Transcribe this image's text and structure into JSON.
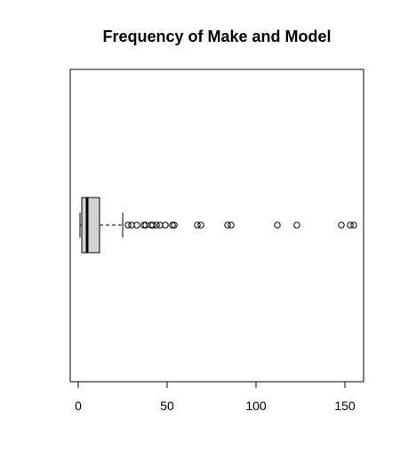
{
  "chart_data": {
    "type": "boxplot",
    "orientation": "horizontal",
    "title": "Frequency of Make and Model",
    "xlabel": "",
    "ylabel": "",
    "xlim": [
      -4.5,
      160.5
    ],
    "x_ticks": [
      0,
      50,
      100,
      150
    ],
    "x_tick_labels": [
      "0",
      "50",
      "100",
      "150"
    ],
    "box": {
      "whisker_low": 1,
      "q1": 2,
      "median": 5,
      "q3": 12,
      "whisker_high": 25
    },
    "outliers": [
      28,
      30,
      33,
      37,
      38,
      41,
      42,
      44,
      46,
      49,
      53,
      54,
      67,
      69,
      84,
      86,
      112,
      123,
      148,
      153,
      155
    ],
    "colors": {
      "box_fill": "#d3d3d3",
      "stroke": "#000000",
      "background": "#ffffff"
    },
    "grid": false
  }
}
